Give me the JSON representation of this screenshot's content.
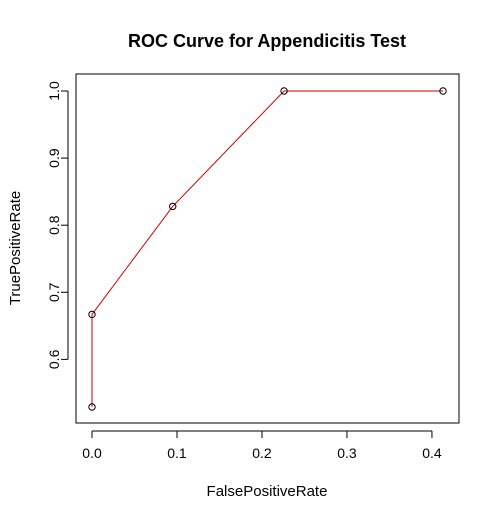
{
  "chart_data": {
    "type": "line",
    "title": "ROC Curve for Appendicitis Test",
    "xlabel": "FalsePositiveRate",
    "ylabel": "TruePositiveRate",
    "xlim": [
      0.0,
      0.42
    ],
    "ylim": [
      0.52,
      1.0
    ],
    "x_ticks": [
      0.0,
      0.1,
      0.2,
      0.3,
      0.4
    ],
    "y_ticks": [
      0.6,
      0.7,
      0.8,
      0.9,
      1.0
    ],
    "x_tick_labels": [
      "0.0",
      "0.1",
      "0.2",
      "0.3",
      "0.4"
    ],
    "y_tick_labels": [
      "0.6",
      "0.7",
      "0.8",
      "0.9",
      "1.0"
    ],
    "series": [
      {
        "x": [
          0.0,
          0.0,
          0.095,
          0.226,
          0.413
        ],
        "y": [
          0.529,
          0.667,
          0.828,
          1.0,
          1.0
        ],
        "line_color": "#cc0000",
        "marker": "open-circle",
        "marker_color": "#000000"
      }
    ],
    "grid": false,
    "legend": "none"
  }
}
